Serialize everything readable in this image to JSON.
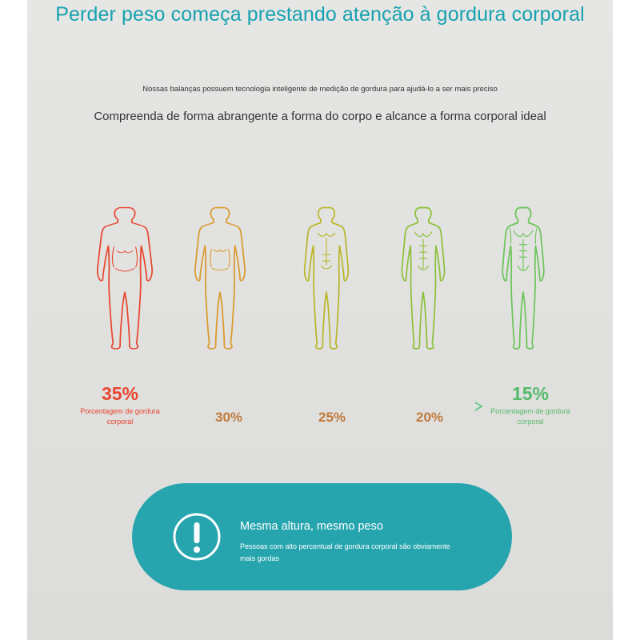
{
  "header": {
    "title": "Perder peso começa prestando atenção à gordura corporal",
    "technology_text": "Nossas balanças possuem tecnologia inteligente de medição de gordura para ajudá-lo a ser mais preciso",
    "subtitle": "Compreenda de forma abrangente a forma do corpo e alcance a forma corporal ideal"
  },
  "figures": [
    {
      "name": "body-figure-35",
      "color": "#e8452f",
      "body_fat_percent": 35
    },
    {
      "name": "body-figure-30",
      "color": "#d99a2b",
      "body_fat_percent": 30
    },
    {
      "name": "body-figure-25",
      "color": "#b9b628",
      "body_fat_percent": 25
    },
    {
      "name": "body-figure-20",
      "color": "#8cc03a",
      "body_fat_percent": 20
    },
    {
      "name": "body-figure-15",
      "color": "#6cc45a",
      "body_fat_percent": 15
    }
  ],
  "scale": {
    "start_value": "35%",
    "start_label": "Porcentagem de gordura corporal",
    "start_color": "#e8452f",
    "mid_values": [
      "30%",
      "25%",
      "20%"
    ],
    "mid_color": "#c07a3a",
    "end_value": "15%",
    "end_label": "Porcentagem de gordura corporal",
    "end_color": "#55b96a"
  },
  "notice": {
    "icon": "exclamation-circle-icon",
    "title": "Mesma altura, mesmo peso",
    "description": "Pessoas com alto percentual de gordura corporal são obviamente mais gordas",
    "background": "#26a5ae"
  }
}
